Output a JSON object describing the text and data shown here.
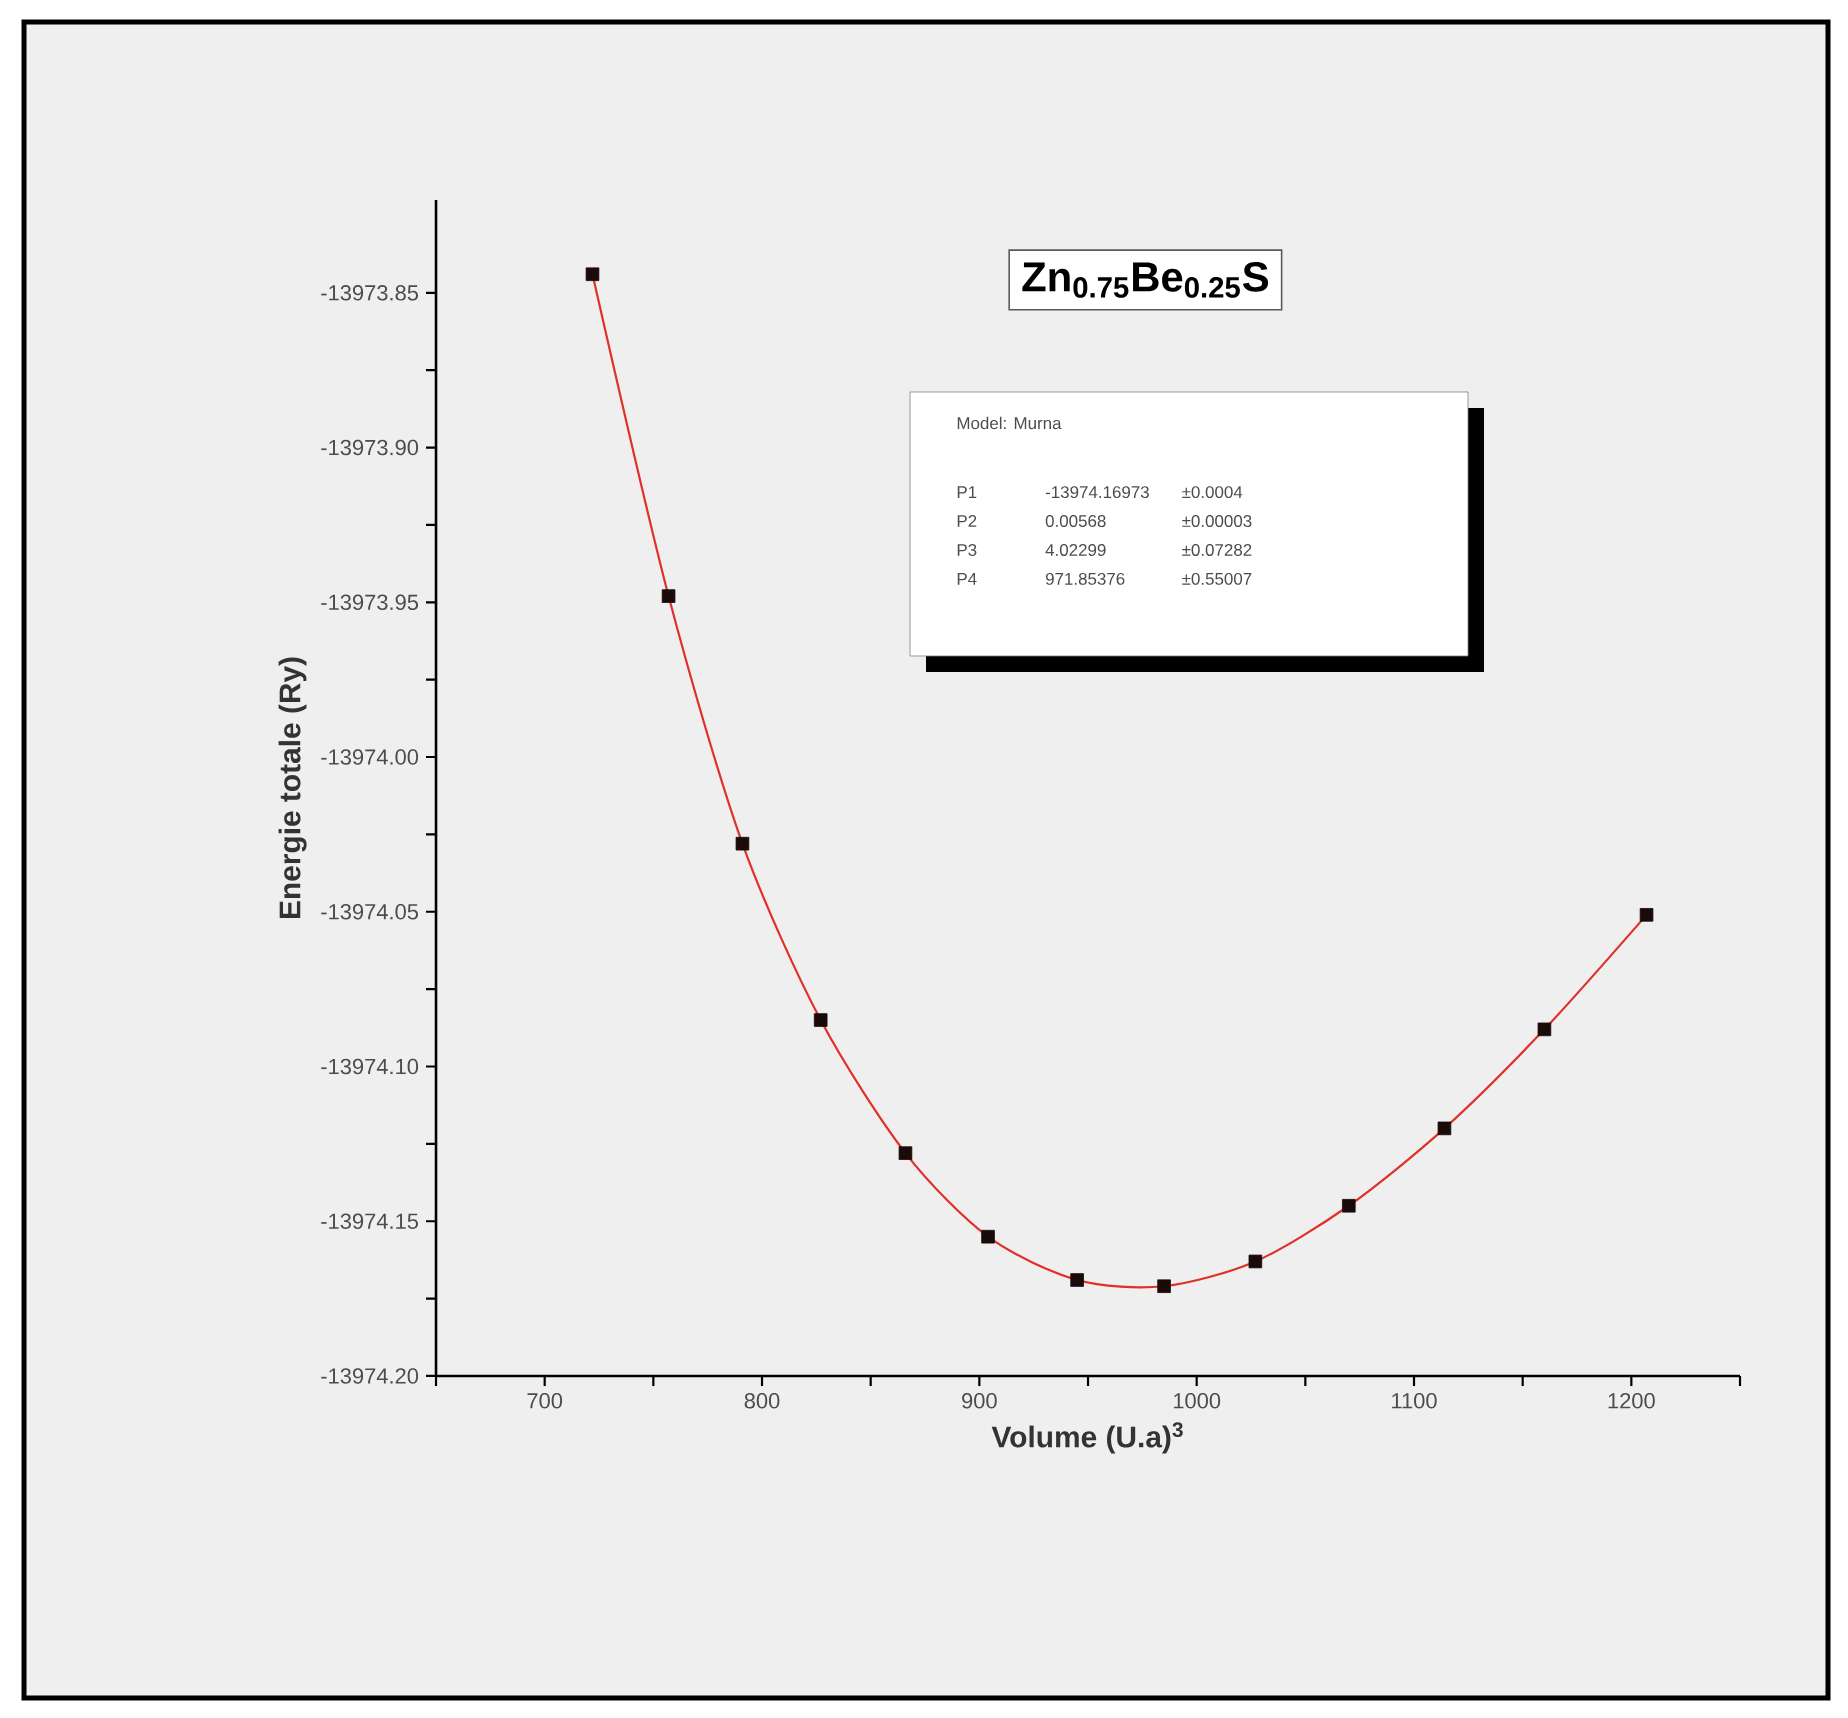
{
  "chart_data": {
    "type": "scatter",
    "xlabel": "Volume (U.a)$^{3}$",
    "ylabel": "Energie totale (Ry)",
    "x": [
      722,
      757,
      791,
      827,
      866,
      904,
      945,
      985,
      1027,
      1070,
      1114,
      1160,
      1207
    ],
    "series": [
      {
        "type": "line",
        "color": "#e0302a",
        "line_style": "solid",
        "marker": "none",
        "values": [
          -13973.844,
          -13973.948,
          -13974.028,
          -13974.085,
          -13974.128,
          -13974.155,
          -13974.169,
          -13974.171,
          -13974.163,
          -13974.145,
          -13974.12,
          -13974.088,
          -13974.051
        ]
      },
      {
        "type": "scatter",
        "color": "#1a0a0a",
        "marker": "square",
        "values": [
          -13973.844,
          -13973.948,
          -13974.028,
          -13974.085,
          -13974.128,
          -13974.155,
          -13974.169,
          -13974.171,
          -13974.163,
          -13974.145,
          -13974.12,
          -13974.088,
          -13974.051
        ]
      }
    ],
    "xlim": [
      650,
      1250
    ],
    "xticks": [
      {
        "value": 650,
        "label": null
      },
      700,
      {
        "value": 750,
        "label": null
      },
      800,
      {
        "value": 850,
        "label": null
      },
      900,
      {
        "value": 950,
        "label": null
      },
      1000,
      {
        "value": 1050,
        "label": null
      },
      1100,
      {
        "value": 1150,
        "label": null
      },
      1200,
      {
        "value": 1250,
        "label": null
      }
    ],
    "ylim": [
      -13974.2,
      -13973.82
    ],
    "yticks": [
      {
        "value": -13974.2,
        "label": "-13974.20"
      },
      {
        "value": -13974.175,
        "label": null
      },
      {
        "value": -13974.15,
        "label": "-13974.15"
      },
      {
        "value": -13974.125,
        "label": null
      },
      {
        "value": -13974.1,
        "label": "-13974.10"
      },
      {
        "value": -13974.075,
        "label": null
      },
      {
        "value": -13974.05,
        "label": "-13974.05"
      },
      {
        "value": -13974.025,
        "label": null
      },
      {
        "value": -13974.0,
        "label": "-13974.00"
      },
      {
        "value": -13973.975,
        "label": null
      },
      {
        "value": -13973.95,
        "label": "-13973.95"
      },
      {
        "value": -13973.925,
        "label": null
      },
      {
        "value": -13973.9,
        "label": "-13973.90"
      },
      {
        "value": -13973.875,
        "label": null
      },
      {
        "value": -13973.85,
        "label": "-13973.85"
      }
    ],
    "grid": false,
    "annotations": [
      "Zn$_{0.75}$Be$_{0.25}$S",
      "Model: Murna",
      "P1",
      "-13974.16973",
      "±0.0004",
      "P2",
      "0.00568",
      "±0.00003",
      "P3",
      "4.02299",
      "±0.07282",
      "P4",
      "971.85376",
      "±0.55007"
    ]
  }
}
